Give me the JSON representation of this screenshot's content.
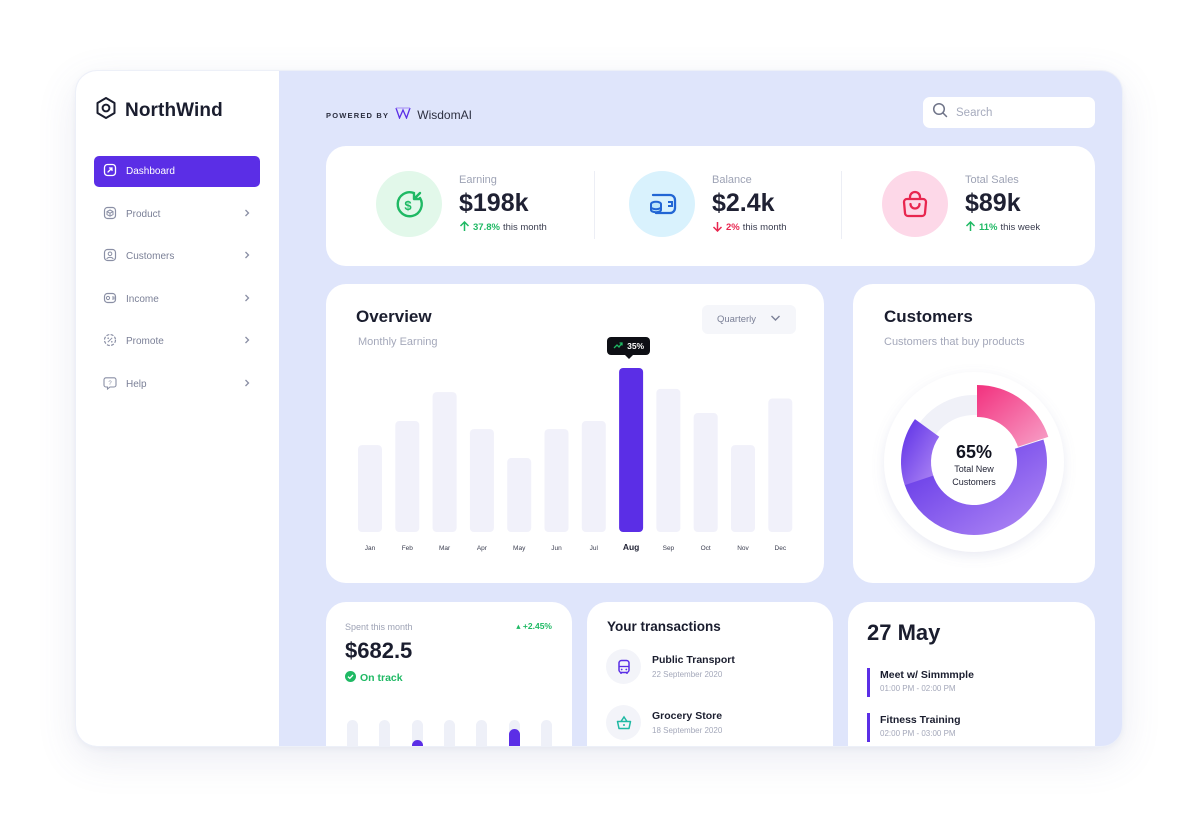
{
  "brand": {
    "name": "NorthWind",
    "logo_icon": "hexagon-logo-icon"
  },
  "sidebar": {
    "items": [
      {
        "label": "Dashboard",
        "icon": "dashboard-icon",
        "active": true
      },
      {
        "label": "Product",
        "icon": "cube-icon"
      },
      {
        "label": "Customers",
        "icon": "user-icon"
      },
      {
        "label": "Income",
        "icon": "wallet-icon"
      },
      {
        "label": "Promote",
        "icon": "percent-badge-icon"
      },
      {
        "label": "Help",
        "icon": "question-icon"
      }
    ]
  },
  "header": {
    "powered_by": "POWERED BY",
    "partner": "WisdomAI",
    "search": {
      "placeholder": "Search",
      "value": ""
    }
  },
  "stats": [
    {
      "label": "Earning",
      "value": "$198k",
      "change": "37.8%",
      "suffix": "this month",
      "direction": "up",
      "icon": "dollar-arrow-icon",
      "color": "#1fb964"
    },
    {
      "label": "Balance",
      "value": "$2.4k",
      "change": "2%",
      "suffix": "this month",
      "direction": "down",
      "icon": "coins-icon",
      "color": "#e8264f"
    },
    {
      "label": "Total Sales",
      "value": "$89k",
      "change": "11%",
      "suffix": "this week",
      "direction": "up",
      "icon": "shopping-bag-icon",
      "color": "#1fb964"
    }
  ],
  "overview": {
    "title": "Overview",
    "subtitle": "Monthly Earning",
    "period": "Quarterly",
    "tooltip": "35%"
  },
  "chart_data": {
    "type": "bar",
    "categories": [
      "Jan",
      "Feb",
      "Mar",
      "Apr",
      "May",
      "Jun",
      "Jul",
      "Aug",
      "Sep",
      "Oct",
      "Nov",
      "Dec"
    ],
    "values": [
      54,
      69,
      87,
      64,
      46,
      64,
      69,
      102,
      89,
      74,
      54,
      83
    ],
    "highlight": "Aug",
    "highlight_label": "35%"
  },
  "customers": {
    "title": "Customers",
    "subtitle": "Customers that buy products",
    "percent": "65%",
    "center_label_1": "Total New",
    "center_label_2": "Customers",
    "donut": [
      {
        "segment": "new",
        "value": 65,
        "color": "#6b3cf0"
      },
      {
        "segment": "pink",
        "value": 20,
        "color": "#f23d8c"
      },
      {
        "segment": "rest",
        "value": 15,
        "color": "#f0f1f8"
      }
    ]
  },
  "spent": {
    "label": "Spent this month",
    "change": "+2.45%",
    "value": "$682.5",
    "status": "On track",
    "mini_chart": [
      0,
      0,
      0.4,
      0,
      0,
      0.72,
      0
    ]
  },
  "transactions": {
    "title": "Your transactions",
    "items": [
      {
        "name": "Public Transport",
        "date": "22 September 2020",
        "icon": "bus-icon"
      },
      {
        "name": "Grocery Store",
        "date": "18 September 2020",
        "icon": "basket-icon"
      }
    ]
  },
  "calendar": {
    "date": "27 May",
    "events": [
      {
        "title": "Meet w/ Simmmple",
        "time": "01:00 PM - 02:00 PM"
      },
      {
        "title": "Fitness Training",
        "time": "02:00 PM - 03:00 PM"
      }
    ]
  }
}
